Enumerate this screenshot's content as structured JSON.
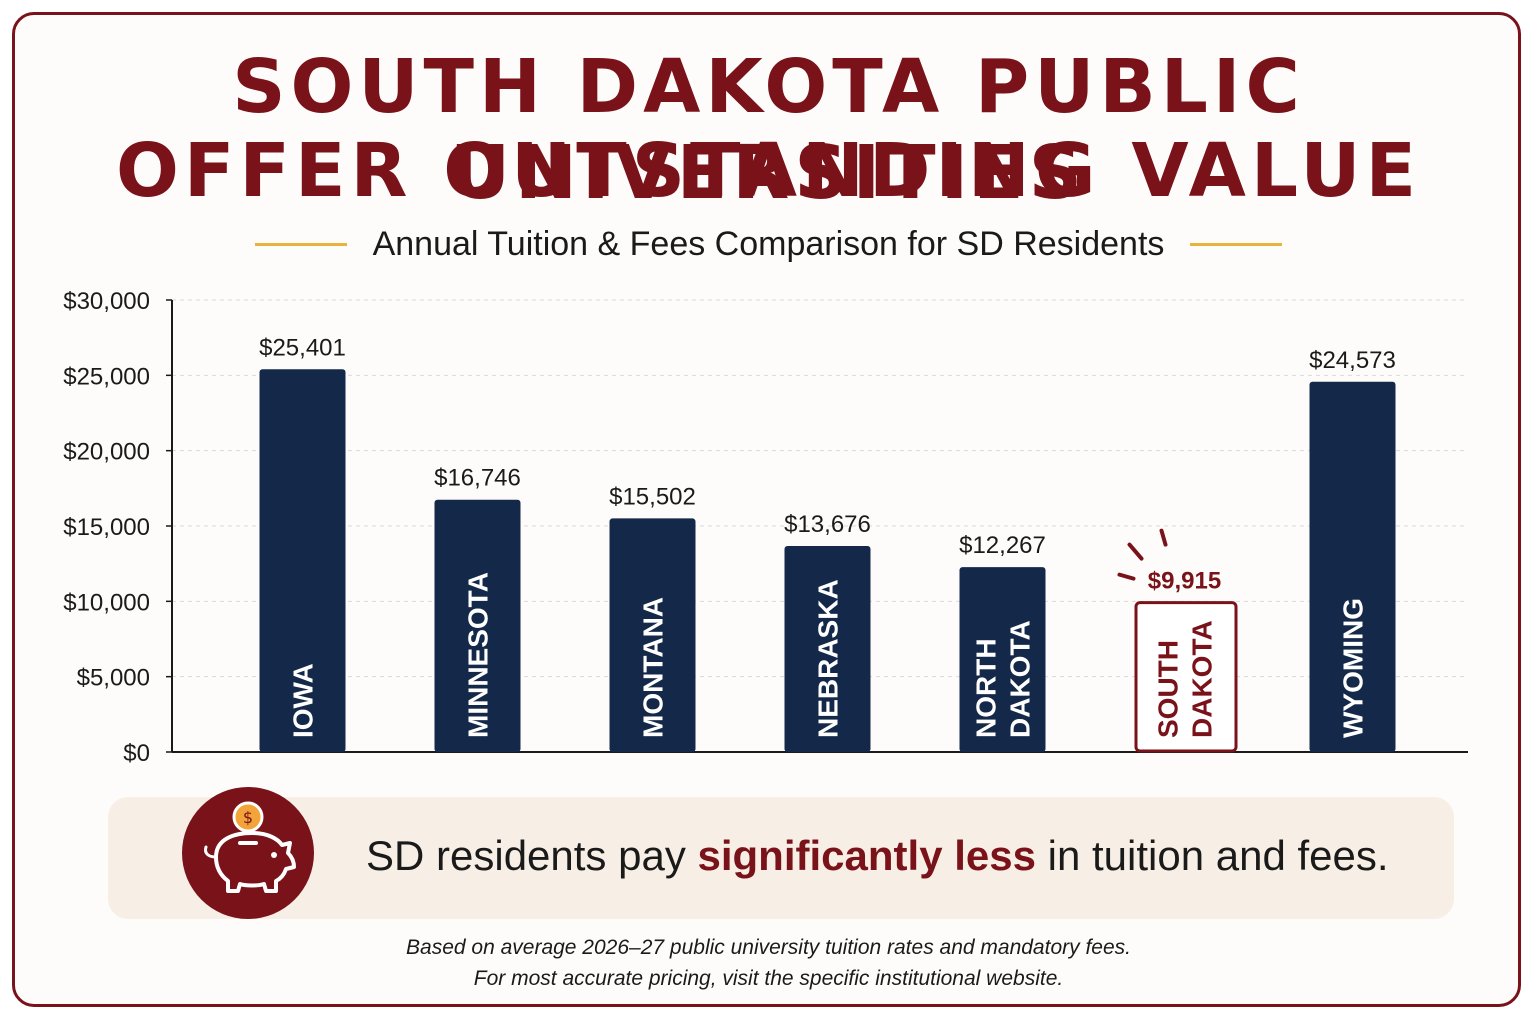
{
  "title_line1": "SOUTH DAKOTA PUBLIC UNIVERSITIES",
  "title_line2": "OFFER OUTSTANDING VALUE",
  "subtitle": "Annual Tuition & Fees Comparison for SD Residents",
  "callout": {
    "before": "SD residents pay ",
    "emphasis": "significantly less",
    "after": " in tuition and fees.",
    "icon": "piggy-bank-coin-icon",
    "coin_symbol": "$"
  },
  "footnote_line1": "Based on average 2026–27 public university tuition rates and mandatory fees.",
  "footnote_line2": "For most accurate pricing, visit the specific institutional website.",
  "colors": {
    "primary": "#7a1219",
    "bar": "#14294a",
    "accent": "#e8b33a",
    "callout_bg": "#f7efe6",
    "coin": "#f2a33a"
  },
  "chart_data": {
    "type": "bar",
    "categories": [
      "IOWA",
      "MINNESOTA",
      "MONTANA",
      "NEBRASKA",
      "NORTH DAKOTA",
      "SOUTH DAKOTA",
      "WYOMING"
    ],
    "category_lines": [
      [
        "IOWA"
      ],
      [
        "MINNESOTA"
      ],
      [
        "MONTANA"
      ],
      [
        "NEBRASKA"
      ],
      [
        "NORTH",
        "DAKOTA"
      ],
      [
        "SOUTH",
        "DAKOTA"
      ],
      [
        "WYOMING"
      ]
    ],
    "values": [
      25401,
      16746,
      15502,
      13676,
      12267,
      9915,
      24573
    ],
    "value_labels": [
      "$25,401",
      "$16,746",
      "$15,502",
      "$13,676",
      "$12,267",
      "$9,915",
      "$24,573"
    ],
    "highlight": "SOUTH DAKOTA",
    "ylim": [
      0,
      30000
    ],
    "yticks": [
      0,
      5000,
      10000,
      15000,
      20000,
      25000,
      30000
    ],
    "ytick_labels": [
      "$0",
      "$5,000",
      "$10,000",
      "$15,000",
      "$20,000",
      "$25,000",
      "$30,000"
    ],
    "grid": true,
    "xlabel": "",
    "ylabel": ""
  }
}
